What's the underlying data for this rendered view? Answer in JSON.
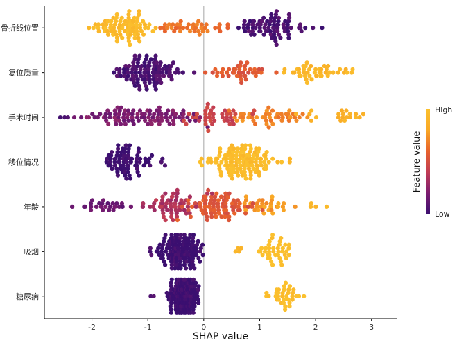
{
  "chart_data": {
    "type": "scatter",
    "subtype": "shap-beeswarm",
    "xlabel": "SHAP value",
    "xlim": [
      -2.85,
      3.45
    ],
    "xticks": [
      -2,
      -1,
      0,
      1,
      2,
      3
    ],
    "zero_line": true,
    "grid": false,
    "colormap": [
      "#3b0f70",
      "#7b1c70",
      "#c03c55",
      "#e8622c",
      "#f9a825",
      "#fbc02d"
    ],
    "colorbar": {
      "title": "Feature value",
      "high_label": "High",
      "low_label": "Low",
      "placement": "right"
    },
    "features": [
      {
        "name": "骨折线位置",
        "groups": [
          {
            "center": -1.4,
            "spread": 0.45,
            "count": 85,
            "value": 0.95
          },
          {
            "center": -0.35,
            "spread": 0.45,
            "count": 35,
            "value": 0.65
          },
          {
            "center": 0.35,
            "spread": 0.15,
            "count": 4,
            "value": 0.6
          },
          {
            "center": 1.25,
            "spread": 0.45,
            "count": 75,
            "value": 0.05
          },
          {
            "center": 2.0,
            "spread": 0.1,
            "count": 2,
            "value": 0.05
          }
        ]
      },
      {
        "name": "复位质量",
        "groups": [
          {
            "center": -0.95,
            "spread": 0.5,
            "count": 110,
            "value": 0.05
          },
          {
            "center": 0.7,
            "spread": 0.55,
            "count": 40,
            "value": 0.55
          },
          {
            "center": 2.0,
            "spread": 0.45,
            "count": 45,
            "value": 0.92
          }
        ]
      },
      {
        "name": "手术时间",
        "groups": [
          {
            "center": -1.0,
            "spread": 0.95,
            "count": 95,
            "value": 0.2
          },
          {
            "center": 0.2,
            "spread": 0.5,
            "count": 40,
            "value": 0.45
          },
          {
            "center": 1.2,
            "spread": 0.75,
            "count": 45,
            "value": 0.7
          },
          {
            "center": 2.4,
            "spread": 0.6,
            "count": 20,
            "value": 0.88
          },
          {
            "center": -2.5,
            "spread": 0.2,
            "count": 3,
            "value": 0.05
          }
        ]
      },
      {
        "name": "移位情况",
        "groups": [
          {
            "center": -1.4,
            "spread": 0.35,
            "count": 75,
            "value": 0.0
          },
          {
            "center": -0.7,
            "spread": 0.1,
            "count": 3,
            "value": 0.05
          },
          {
            "center": 0.65,
            "spread": 0.5,
            "count": 130,
            "value": 0.97
          },
          {
            "center": 1.55,
            "spread": 0.03,
            "count": 2,
            "value": 0.95
          }
        ]
      },
      {
        "name": "年龄",
        "groups": [
          {
            "center": -1.7,
            "spread": 0.5,
            "count": 25,
            "value": 0.15
          },
          {
            "center": -0.6,
            "spread": 0.5,
            "count": 55,
            "value": 0.35
          },
          {
            "center": 0.25,
            "spread": 0.55,
            "count": 80,
            "value": 0.55
          },
          {
            "center": 1.2,
            "spread": 0.45,
            "count": 30,
            "value": 0.75
          },
          {
            "center": 1.95,
            "spread": 0.25,
            "count": 4,
            "value": 0.92
          }
        ]
      },
      {
        "name": "吸烟",
        "groups": [
          {
            "center": -0.4,
            "spread": 0.35,
            "count": 140,
            "value": 0.0
          },
          {
            "center": -0.95,
            "spread": 0.1,
            "count": 3,
            "value": 0.05
          },
          {
            "center": 1.25,
            "spread": 0.3,
            "count": 40,
            "value": 1.0
          },
          {
            "center": 0.6,
            "spread": 0.15,
            "count": 4,
            "value": 0.95
          }
        ]
      },
      {
        "name": "糖尿病",
        "groups": [
          {
            "center": -0.35,
            "spread": 0.25,
            "count": 170,
            "value": 0.0
          },
          {
            "center": -0.9,
            "spread": 0.05,
            "count": 2,
            "value": 0.05
          },
          {
            "center": 1.45,
            "spread": 0.35,
            "count": 35,
            "value": 1.0
          }
        ]
      }
    ]
  }
}
